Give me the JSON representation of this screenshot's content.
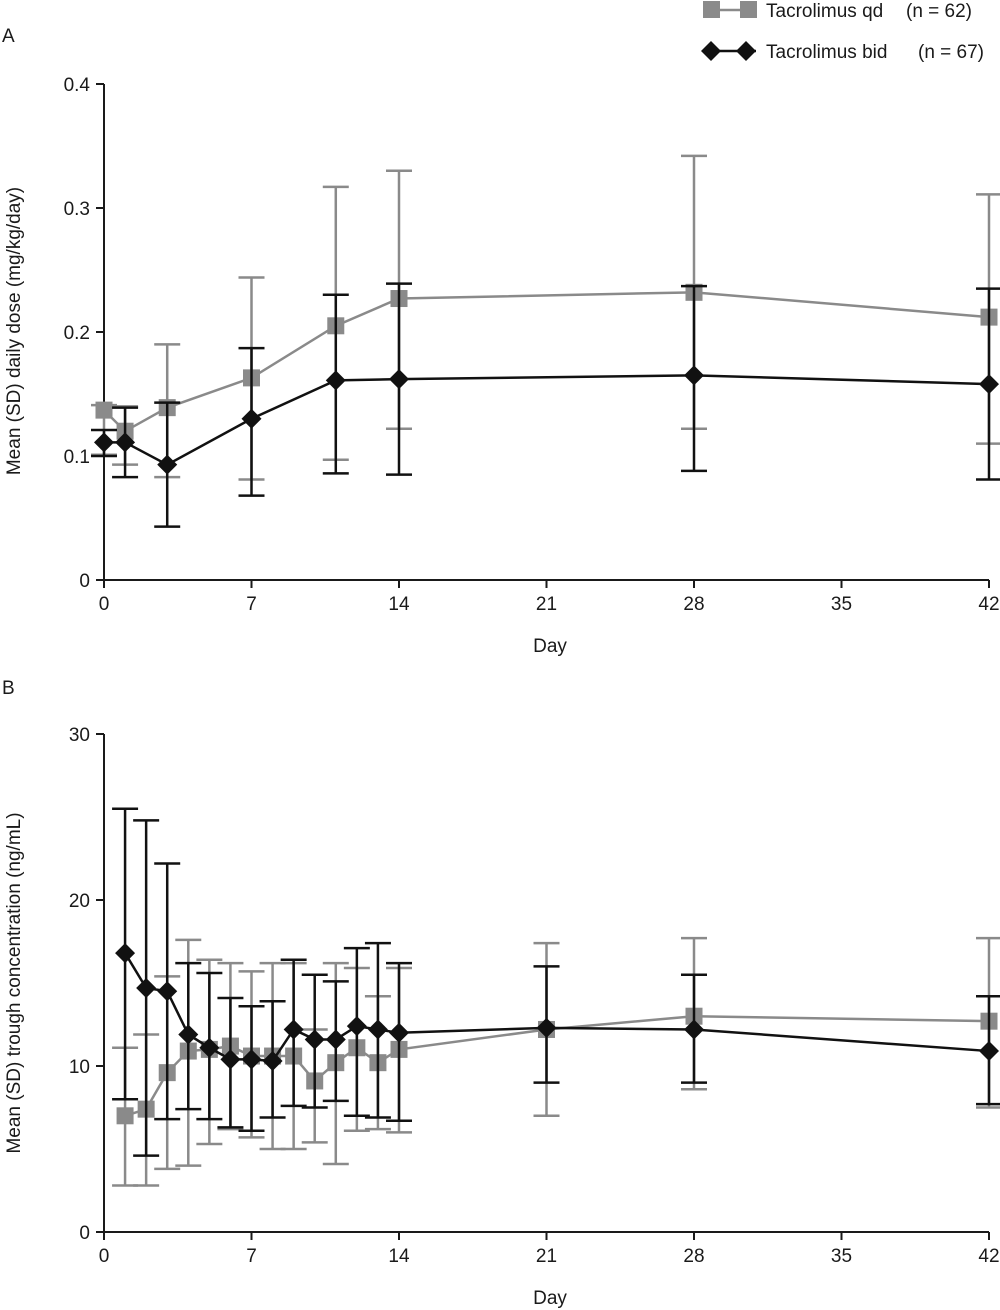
{
  "legend": {
    "items": [
      {
        "name": "Tacrolimus qd",
        "n": "(n = 62)",
        "color": "#8a8a8a",
        "marker": "square"
      },
      {
        "name": "Tacrolimus bid",
        "n": "(n = 67)",
        "color": "#111111",
        "marker": "diamond"
      }
    ]
  },
  "chart_data": [
    {
      "panel": "A",
      "type": "line",
      "xlabel": "Day",
      "ylabel": "Mean (SD) daily dose (mg/kg/day)",
      "xlim": [
        0,
        42
      ],
      "ylim": [
        0,
        0.4
      ],
      "xticks": [
        0,
        7,
        14,
        21,
        28,
        35,
        42
      ],
      "yticks": [
        0,
        0.1,
        0.2,
        0.3,
        0.4
      ],
      "ytick_labels": [
        "0",
        "0.1",
        "0.2",
        "0.3",
        "0.4"
      ],
      "grid": false,
      "legend_position": "top-right",
      "series": [
        {
          "name": "Tacrolimus qd",
          "color": "#8a8a8a",
          "marker": "square",
          "x": [
            0,
            1,
            3,
            7,
            11,
            14,
            28,
            42
          ],
          "y": [
            0.137,
            0.12,
            0.139,
            0.163,
            0.205,
            0.227,
            0.232,
            0.212
          ],
          "err_low": [
            0.101,
            0.093,
            0.083,
            0.081,
            0.097,
            0.122,
            0.122,
            0.11
          ],
          "err_high": [
            0.141,
            0.14,
            0.19,
            0.244,
            0.317,
            0.33,
            0.342,
            0.311
          ]
        },
        {
          "name": "Tacrolimus bid",
          "color": "#111111",
          "marker": "diamond",
          "x": [
            0,
            1,
            3,
            7,
            11,
            14,
            28,
            42
          ],
          "y": [
            0.111,
            0.111,
            0.093,
            0.13,
            0.161,
            0.162,
            0.165,
            0.158
          ],
          "err_low": [
            0.1,
            0.083,
            0.043,
            0.068,
            0.086,
            0.085,
            0.088,
            0.081
          ],
          "err_high": [
            0.121,
            0.139,
            0.143,
            0.187,
            0.23,
            0.239,
            0.237,
            0.235
          ]
        }
      ]
    },
    {
      "panel": "B",
      "type": "line",
      "xlabel": "Day",
      "ylabel": "Mean (SD) trough concentration (ng/mL)",
      "xlim": [
        0,
        42
      ],
      "ylim": [
        0,
        30
      ],
      "xticks": [
        0,
        7,
        14,
        21,
        28,
        35,
        42
      ],
      "yticks": [
        0,
        10,
        20,
        30
      ],
      "ytick_labels": [
        "0",
        "10",
        "20",
        "30"
      ],
      "grid": false,
      "series": [
        {
          "name": "Tacrolimus qd",
          "color": "#8a8a8a",
          "marker": "square",
          "x": [
            1,
            2,
            3,
            4,
            5,
            6,
            7,
            8,
            9,
            10,
            11,
            12,
            13,
            14,
            21,
            28,
            42
          ],
          "y": [
            7.0,
            7.4,
            9.6,
            10.9,
            11.0,
            11.2,
            10.6,
            10.6,
            10.6,
            9.1,
            10.2,
            11.1,
            10.2,
            11.0,
            12.2,
            13.0,
            12.7
          ],
          "err_low": [
            2.8,
            2.8,
            3.8,
            4.0,
            5.3,
            6.2,
            5.7,
            5.0,
            5.0,
            5.4,
            4.1,
            6.1,
            6.2,
            6.0,
            7.0,
            8.6,
            7.5
          ],
          "err_high": [
            11.1,
            11.9,
            15.4,
            17.6,
            16.4,
            16.2,
            15.7,
            16.2,
            16.2,
            12.2,
            16.2,
            15.9,
            14.2,
            15.9,
            17.4,
            17.7,
            17.7
          ]
        },
        {
          "name": "Tacrolimus bid",
          "color": "#111111",
          "marker": "diamond",
          "x": [
            1,
            2,
            3,
            4,
            5,
            6,
            7,
            8,
            9,
            10,
            11,
            12,
            13,
            14,
            21,
            28,
            42
          ],
          "y": [
            16.8,
            14.7,
            14.5,
            11.9,
            11.1,
            10.4,
            10.4,
            10.3,
            12.2,
            11.6,
            11.6,
            12.4,
            12.2,
            12.0,
            12.3,
            12.2,
            10.9
          ],
          "err_low": [
            8.0,
            4.6,
            6.8,
            7.4,
            6.8,
            6.3,
            6.1,
            6.9,
            7.6,
            7.5,
            7.9,
            7.0,
            6.9,
            6.7,
            9.0,
            9.0,
            7.7
          ],
          "err_high": [
            25.5,
            24.8,
            22.2,
            16.2,
            15.6,
            14.1,
            13.6,
            13.9,
            16.4,
            15.5,
            15.1,
            17.1,
            17.4,
            16.2,
            16.0,
            15.5,
            14.2
          ]
        }
      ]
    }
  ]
}
